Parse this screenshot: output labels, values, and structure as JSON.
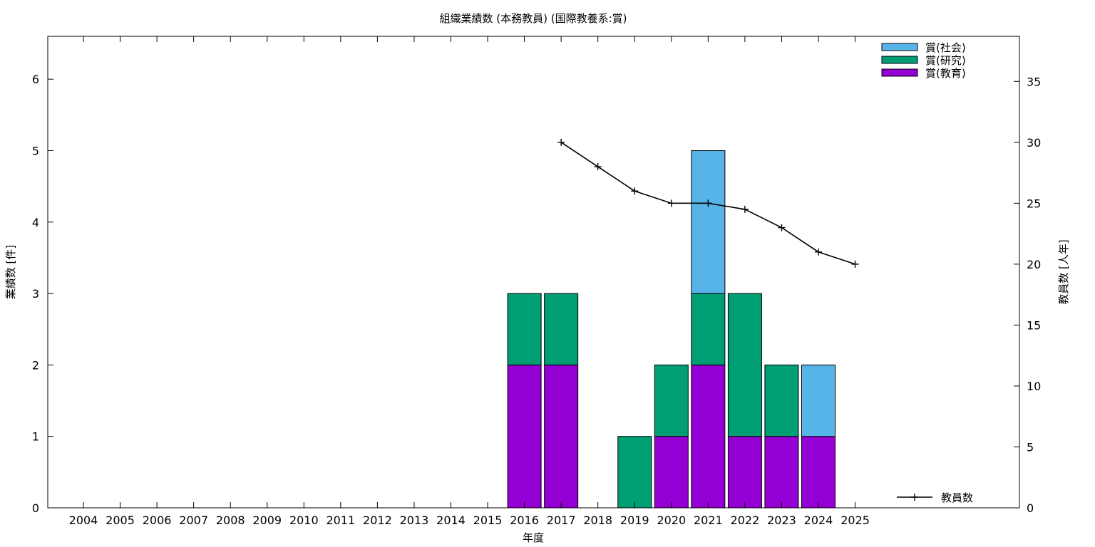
{
  "chart_data": {
    "type": "bar",
    "stacked": true,
    "title": "組織業績数 (本務教員) (国際教養系:賞)",
    "xlabel": "年度",
    "ylabel": "業績数 [件]",
    "y2label": "教員数 [人年]",
    "categories": [
      "2004",
      "2005",
      "2006",
      "2007",
      "2008",
      "2009",
      "2010",
      "2011",
      "2012",
      "2013",
      "2014",
      "2015",
      "2016",
      "2017",
      "2018",
      "2019",
      "2020",
      "2021",
      "2022",
      "2023",
      "2024",
      "2025"
    ],
    "ylim": [
      0,
      6.6
    ],
    "y2lim": [
      0,
      38.7
    ],
    "yticks": [
      "0",
      "1",
      "2",
      "3",
      "4",
      "5",
      "6"
    ],
    "y2ticks": [
      "0",
      "5",
      "10",
      "15",
      "20",
      "25",
      "30",
      "35"
    ],
    "legend_position": "top-right",
    "series": [
      {
        "name": "賞(教育)",
        "color": "#9400d3",
        "values": [
          0,
          0,
          0,
          0,
          0,
          0,
          0,
          0,
          0,
          0,
          0,
          0,
          2,
          2,
          0,
          0,
          1,
          2,
          1,
          1,
          1,
          0
        ]
      },
      {
        "name": "賞(研究)",
        "color": "#009e73",
        "values": [
          0,
          0,
          0,
          0,
          0,
          0,
          0,
          0,
          0,
          0,
          0,
          0,
          1,
          1,
          0,
          1,
          1,
          1,
          2,
          1,
          0,
          0
        ]
      },
      {
        "name": "賞(社会)",
        "color": "#56b4e9",
        "values": [
          0,
          0,
          0,
          0,
          0,
          0,
          0,
          0,
          0,
          0,
          0,
          0,
          0,
          0,
          0,
          0,
          0,
          2,
          0,
          0,
          1,
          0
        ]
      }
    ],
    "line_series": {
      "name": "教員数",
      "color": "#000000",
      "axis": "y2",
      "x": [
        "2017",
        "2018",
        "2019",
        "2020",
        "2021",
        "2022",
        "2023",
        "2024",
        "2025"
      ],
      "values": [
        30,
        28,
        26,
        25,
        25,
        24.5,
        23,
        21,
        20
      ]
    }
  }
}
